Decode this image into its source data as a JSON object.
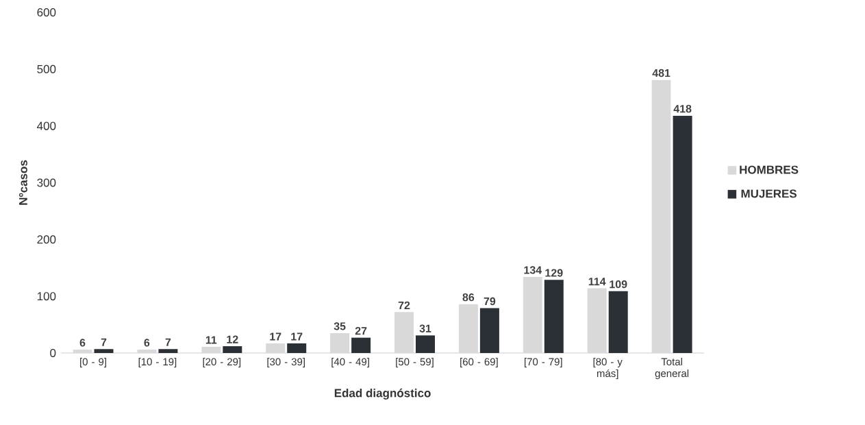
{
  "chart_data": {
    "type": "bar",
    "xlabel": "Edad diagnóstico",
    "ylabel": "Nºcasos",
    "categories": [
      "[0 - 9]",
      "[10 - 19]",
      "[20 - 29]",
      "[30 - 39]",
      "[40 - 49]",
      "[50 - 59]",
      "[60 - 69]",
      "[70 - 79]",
      "[80 - y más]",
      "Total general"
    ],
    "series": [
      {
        "name": "HOMBRES",
        "color": "#d9d9d9",
        "values": [
          6,
          6,
          11,
          17,
          35,
          72,
          86,
          134,
          114,
          481
        ]
      },
      {
        "name": "MUJERES",
        "color": "#2b2f36",
        "values": [
          7,
          7,
          12,
          17,
          27,
          31,
          79,
          129,
          109,
          418
        ]
      }
    ],
    "ylim": [
      0,
      600
    ],
    "yticks": [
      0,
      100,
      200,
      300,
      400,
      500,
      600
    ],
    "data_labels": true,
    "legend": "right",
    "grid": false
  }
}
